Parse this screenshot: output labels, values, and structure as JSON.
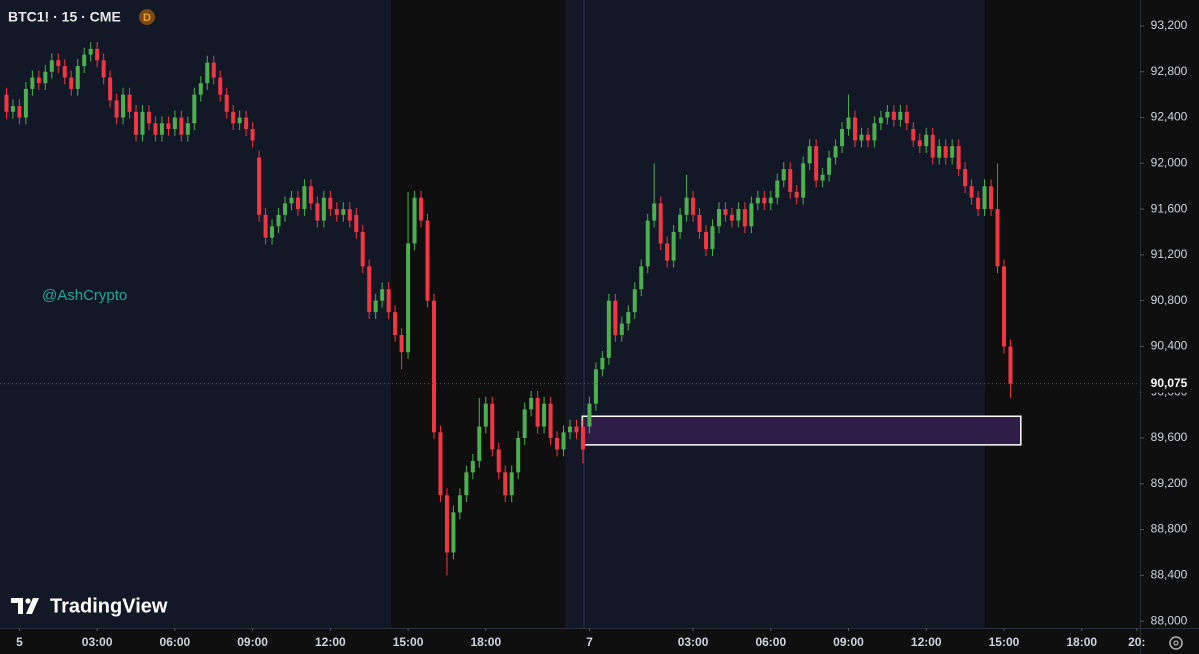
{
  "chart_data": {
    "type": "candlestick",
    "title": "BTC1! · 15 · CME",
    "badge": "D",
    "watermark": "@AshCrypto",
    "brand": "TradingView",
    "up_color": "#4caf50",
    "down_color": "#f23645",
    "xlim": [
      -1,
      175
    ],
    "ylim": [
      87940,
      93427
    ],
    "yticks": [
      {
        "value": 88000,
        "label": "88,000"
      },
      {
        "value": 88400,
        "label": "88,400"
      },
      {
        "value": 88800,
        "label": "88,800"
      },
      {
        "value": 89200,
        "label": "89,200"
      },
      {
        "value": 89600,
        "label": "89,600"
      },
      {
        "value": 90000,
        "label": "90,000"
      },
      {
        "value": 90400,
        "label": "90,400"
      },
      {
        "value": 90800,
        "label": "90,800"
      },
      {
        "value": 91200,
        "label": "91,200"
      },
      {
        "value": 91600,
        "label": "91,600"
      },
      {
        "value": 92000,
        "label": "92,000"
      },
      {
        "value": 92400,
        "label": "92,400"
      },
      {
        "value": 92800,
        "label": "92,800"
      },
      {
        "value": 93200,
        "label": "93,200"
      }
    ],
    "xticks": [
      {
        "value": 2,
        "label": "5"
      },
      {
        "value": 14,
        "label": "03:00"
      },
      {
        "value": 26,
        "label": "06:00"
      },
      {
        "value": 38,
        "label": "09:00"
      },
      {
        "value": 50,
        "label": "12:00"
      },
      {
        "value": 62,
        "label": "15:00"
      },
      {
        "value": 74,
        "label": "18:00"
      },
      {
        "value": 90,
        "label": "7"
      },
      {
        "value": 106,
        "label": "03:00"
      },
      {
        "value": 118,
        "label": "06:00"
      },
      {
        "value": 130,
        "label": "09:00"
      },
      {
        "value": 142,
        "label": "12:00"
      },
      {
        "value": 154,
        "label": "15:00"
      },
      {
        "value": 166,
        "label": "18:00"
      },
      {
        "value": 174.5,
        "label": "20:"
      }
    ],
    "last_price": {
      "value": 90075,
      "label": "90,075"
    },
    "zone": {
      "x": [
        88.9,
        156.6
      ],
      "y": [
        89540,
        89790
      ],
      "color": "#2e1d47"
    },
    "open": [
      92600,
      92450,
      92500,
      92400,
      92650,
      92750,
      92700,
      92800,
      92900,
      92850,
      92750,
      92650,
      92850,
      92950,
      93000,
      92900,
      92750,
      92550,
      92400,
      92600,
      92450,
      92250,
      92450,
      92350,
      92250,
      92350,
      92300,
      92400,
      92250,
      92350,
      92600,
      92700,
      92880,
      92750,
      92600,
      92450,
      92350,
      92400,
      92300,
      92050,
      91550,
      91350,
      91450,
      91550,
      91650,
      91700,
      91600,
      91800,
      91650,
      91500,
      91700,
      91600,
      91550,
      91600,
      91550,
      91400,
      91100,
      90700,
      90800,
      90900,
      90700,
      90500,
      90350,
      91300,
      91700,
      91500,
      90800,
      89650,
      89100,
      88600,
      88950,
      89100,
      89300,
      89400,
      89700,
      89900,
      89500,
      89300,
      89100,
      89300,
      89600,
      89850,
      89950,
      89700,
      89900,
      89600,
      89500,
      89650,
      89700,
      89700,
      89700,
      89900,
      90200,
      90300,
      90800,
      90500,
      90600,
      90700,
      90900,
      91100,
      91500,
      91650,
      91300,
      91150,
      91400,
      91550,
      91700,
      91550,
      91400,
      91250,
      91450,
      91600,
      91550,
      91500,
      91600,
      91450,
      91650,
      91700,
      91650,
      91700,
      91850,
      91950,
      91750,
      91700,
      92000,
      92150,
      91850,
      91900,
      92050,
      92150,
      92300,
      92400,
      92200,
      92250,
      92200,
      92350,
      92400,
      92450,
      92380,
      92450,
      92300,
      92200,
      92150,
      92250,
      92050,
      92150,
      92050,
      92150,
      91950,
      91800,
      91700,
      91600,
      91800,
      91600,
      91100,
      90400
    ],
    "high": [
      92660,
      92560,
      92560,
      92710,
      92810,
      92810,
      92860,
      92960,
      92960,
      92910,
      92810,
      92910,
      93010,
      93060,
      93060,
      92960,
      92810,
      92610,
      92660,
      92660,
      92510,
      92510,
      92510,
      92410,
      92410,
      92410,
      92460,
      92460,
      92410,
      92660,
      92760,
      92940,
      92940,
      92810,
      92660,
      92510,
      92460,
      92460,
      92360,
      92110,
      91610,
      91510,
      91610,
      91710,
      91760,
      91760,
      91860,
      91860,
      91710,
      91760,
      91760,
      91660,
      91660,
      91660,
      91610,
      91460,
      91160,
      90860,
      90960,
      90960,
      90760,
      90560,
      91750,
      91760,
      91760,
      91560,
      90860,
      89710,
      89160,
      89010,
      89160,
      89360,
      89460,
      89950,
      89960,
      89960,
      89560,
      89360,
      89360,
      89660,
      89910,
      90010,
      90010,
      89960,
      89960,
      89660,
      89710,
      89760,
      89760,
      89760,
      89960,
      90260,
      90360,
      90860,
      90860,
      90660,
      90760,
      90960,
      91160,
      91560,
      92000,
      91710,
      91360,
      91460,
      91610,
      91900,
      91760,
      91610,
      91460,
      91510,
      91660,
      91660,
      91610,
      91660,
      91660,
      91710,
      91760,
      91760,
      91760,
      91910,
      92010,
      92010,
      91810,
      92060,
      92210,
      92210,
      91960,
      92110,
      92210,
      92360,
      92600,
      92460,
      92310,
      92310,
      92410,
      92460,
      92510,
      92510,
      92510,
      92510,
      92360,
      92260,
      92310,
      92310,
      92210,
      92210,
      92210,
      92210,
      92010,
      91860,
      91760,
      91860,
      91860,
      92000,
      91160,
      90460
    ],
    "low": [
      92390,
      92390,
      92340,
      92340,
      92590,
      92640,
      92640,
      92740,
      92790,
      92690,
      92590,
      92590,
      92790,
      92890,
      92840,
      92690,
      92490,
      92340,
      92340,
      92390,
      92190,
      92190,
      92290,
      92190,
      92190,
      92240,
      92240,
      92190,
      92190,
      92290,
      92540,
      92640,
      92690,
      92540,
      92390,
      92290,
      92290,
      92240,
      92140,
      91490,
      91290,
      91290,
      91390,
      91490,
      91590,
      91540,
      91540,
      91590,
      91440,
      91440,
      91540,
      91490,
      91490,
      91440,
      91340,
      91040,
      90640,
      90640,
      90740,
      90640,
      90440,
      90200,
      90290,
      91240,
      91440,
      90740,
      89590,
      89040,
      88400,
      88540,
      88890,
      89040,
      89240,
      89340,
      89640,
      89440,
      89240,
      89040,
      89040,
      89240,
      89540,
      89790,
      89640,
      89640,
      89540,
      89440,
      89440,
      89590,
      89590,
      89380,
      89640,
      89840,
      90140,
      90240,
      90440,
      90440,
      90540,
      90640,
      90840,
      91040,
      91440,
      91240,
      91090,
      91090,
      91340,
      91490,
      91490,
      91340,
      91190,
      91190,
      91390,
      91490,
      91440,
      91440,
      91390,
      91390,
      91590,
      91590,
      91590,
      91640,
      91790,
      91690,
      91640,
      91640,
      91940,
      91790,
      91790,
      91840,
      91990,
      92090,
      92240,
      92140,
      92140,
      92140,
      92140,
      92290,
      92340,
      92320,
      92320,
      92290,
      92140,
      92090,
      92090,
      91990,
      91990,
      91990,
      91990,
      91890,
      91740,
      91640,
      91540,
      91540,
      91540,
      91040,
      90340,
      89950
    ],
    "close": [
      92450,
      92500,
      92400,
      92650,
      92750,
      92700,
      92800,
      92900,
      92850,
      92750,
      92650,
      92850,
      92950,
      93000,
      92900,
      92750,
      92550,
      92400,
      92600,
      92450,
      92250,
      92450,
      92350,
      92250,
      92350,
      92300,
      92400,
      92250,
      92350,
      92600,
      92700,
      92880,
      92750,
      92600,
      92450,
      92350,
      92400,
      92300,
      92200,
      91550,
      91350,
      91450,
      91550,
      91650,
      91700,
      91600,
      91800,
      91650,
      91500,
      91700,
      91600,
      91550,
      91600,
      91500,
      91400,
      91100,
      90700,
      90800,
      90900,
      90700,
      90500,
      90350,
      91300,
      91700,
      91500,
      90800,
      89650,
      89100,
      88600,
      88950,
      89100,
      89300,
      89400,
      89700,
      89900,
      89500,
      89300,
      89100,
      89300,
      89600,
      89850,
      89950,
      89700,
      89900,
      89600,
      89500,
      89650,
      89700,
      89650,
      89500,
      89900,
      90200,
      90300,
      90800,
      90500,
      90600,
      90700,
      90900,
      91100,
      91500,
      91650,
      91300,
      91150,
      91400,
      91550,
      91700,
      91550,
      91400,
      91250,
      91450,
      91600,
      91550,
      91500,
      91600,
      91450,
      91650,
      91700,
      91650,
      91700,
      91850,
      91950,
      91750,
      91700,
      92000,
      92150,
      91850,
      91900,
      92050,
      92150,
      92300,
      92400,
      92200,
      92250,
      92200,
      92350,
      92400,
      92450,
      92380,
      92450,
      92350,
      92200,
      92150,
      92250,
      92050,
      92150,
      92050,
      92150,
      91950,
      91800,
      91700,
      91600,
      91800,
      91600,
      91100,
      90400,
      90075
    ]
  }
}
